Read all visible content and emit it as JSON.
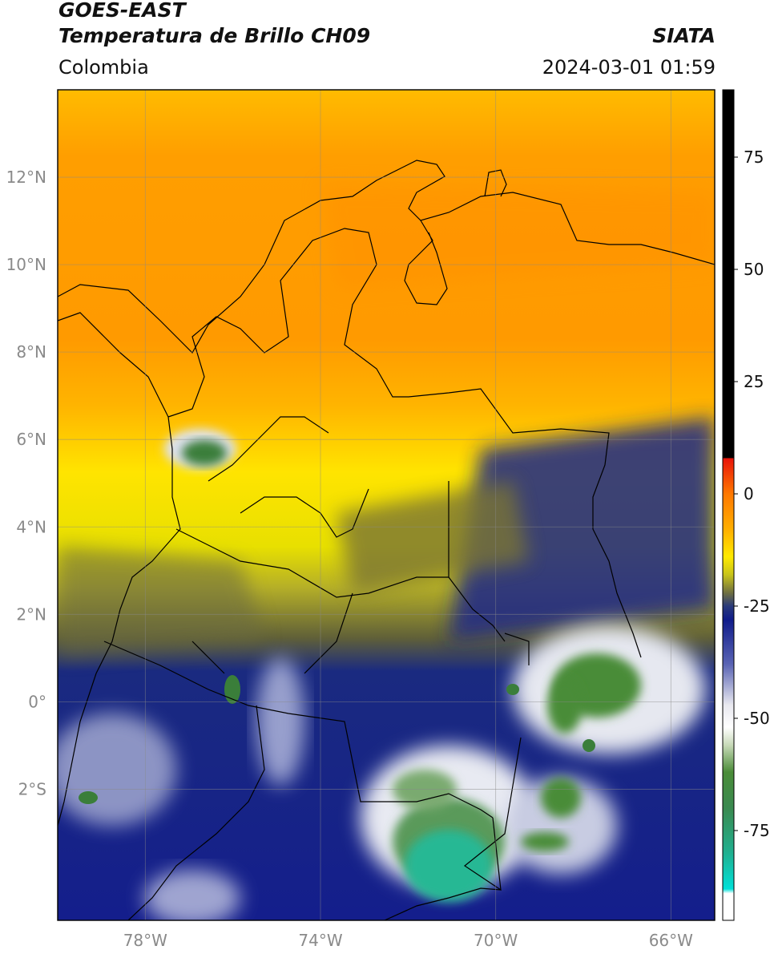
{
  "header": {
    "satellite": "GOES-EAST",
    "product": "Temperatura de Brillo CH09",
    "brand": "SIATA",
    "region": "Colombia",
    "datetime": "2024-03-01 01:59"
  },
  "map": {
    "lon_range": [
      -80.0,
      -65.0
    ],
    "lat_range": [
      -5.0,
      14.0
    ],
    "lat_ticks": [
      {
        "value": 12,
        "label": "12°N"
      },
      {
        "value": 10,
        "label": "10°N"
      },
      {
        "value": 8,
        "label": "8°N"
      },
      {
        "value": 6,
        "label": "6°N"
      },
      {
        "value": 4,
        "label": "4°N"
      },
      {
        "value": 2,
        "label": "2°N"
      },
      {
        "value": 0,
        "label": "0°"
      },
      {
        "value": -2,
        "label": "2°S"
      }
    ],
    "lon_ticks": [
      {
        "value": -78,
        "label": "78°W"
      },
      {
        "value": -74,
        "label": "74°W"
      },
      {
        "value": -70,
        "label": "70°W"
      },
      {
        "value": -66,
        "label": "66°W"
      }
    ],
    "grid": true
  },
  "colorbar": {
    "range": [
      -95,
      90
    ],
    "ticks": [
      {
        "value": 75,
        "label": "75"
      },
      {
        "value": 50,
        "label": "50"
      },
      {
        "value": 25,
        "label": "25"
      },
      {
        "value": 0,
        "label": "0"
      },
      {
        "value": -25,
        "label": "-25"
      },
      {
        "value": -50,
        "label": "-50"
      },
      {
        "value": -75,
        "label": "-75"
      }
    ],
    "stops": [
      {
        "value": 90,
        "color": "#000000"
      },
      {
        "value": 8,
        "color": "#000000"
      },
      {
        "value": 7.9,
        "color": "#e8140a"
      },
      {
        "value": 0,
        "color": "#ff7800"
      },
      {
        "value": -8,
        "color": "#ffb000"
      },
      {
        "value": -14,
        "color": "#ffea00"
      },
      {
        "value": -18,
        "color": "#c8c41a"
      },
      {
        "value": -22,
        "color": "#707040"
      },
      {
        "value": -25,
        "color": "#2a3a7a"
      },
      {
        "value": -28,
        "color": "#101c8a"
      },
      {
        "value": -38,
        "color": "#5a64b4"
      },
      {
        "value": -47,
        "color": "#e8e8ef"
      },
      {
        "value": -52,
        "color": "#ffffff"
      },
      {
        "value": -56,
        "color": "#c7d9b8"
      },
      {
        "value": -62,
        "color": "#4a8c38"
      },
      {
        "value": -70,
        "color": "#3a8a50"
      },
      {
        "value": -80,
        "color": "#20b090"
      },
      {
        "value": -88,
        "color": "#00e0d8"
      },
      {
        "value": -89,
        "color": "#ffffff"
      },
      {
        "value": -95,
        "color": "#ffffff"
      }
    ]
  }
}
